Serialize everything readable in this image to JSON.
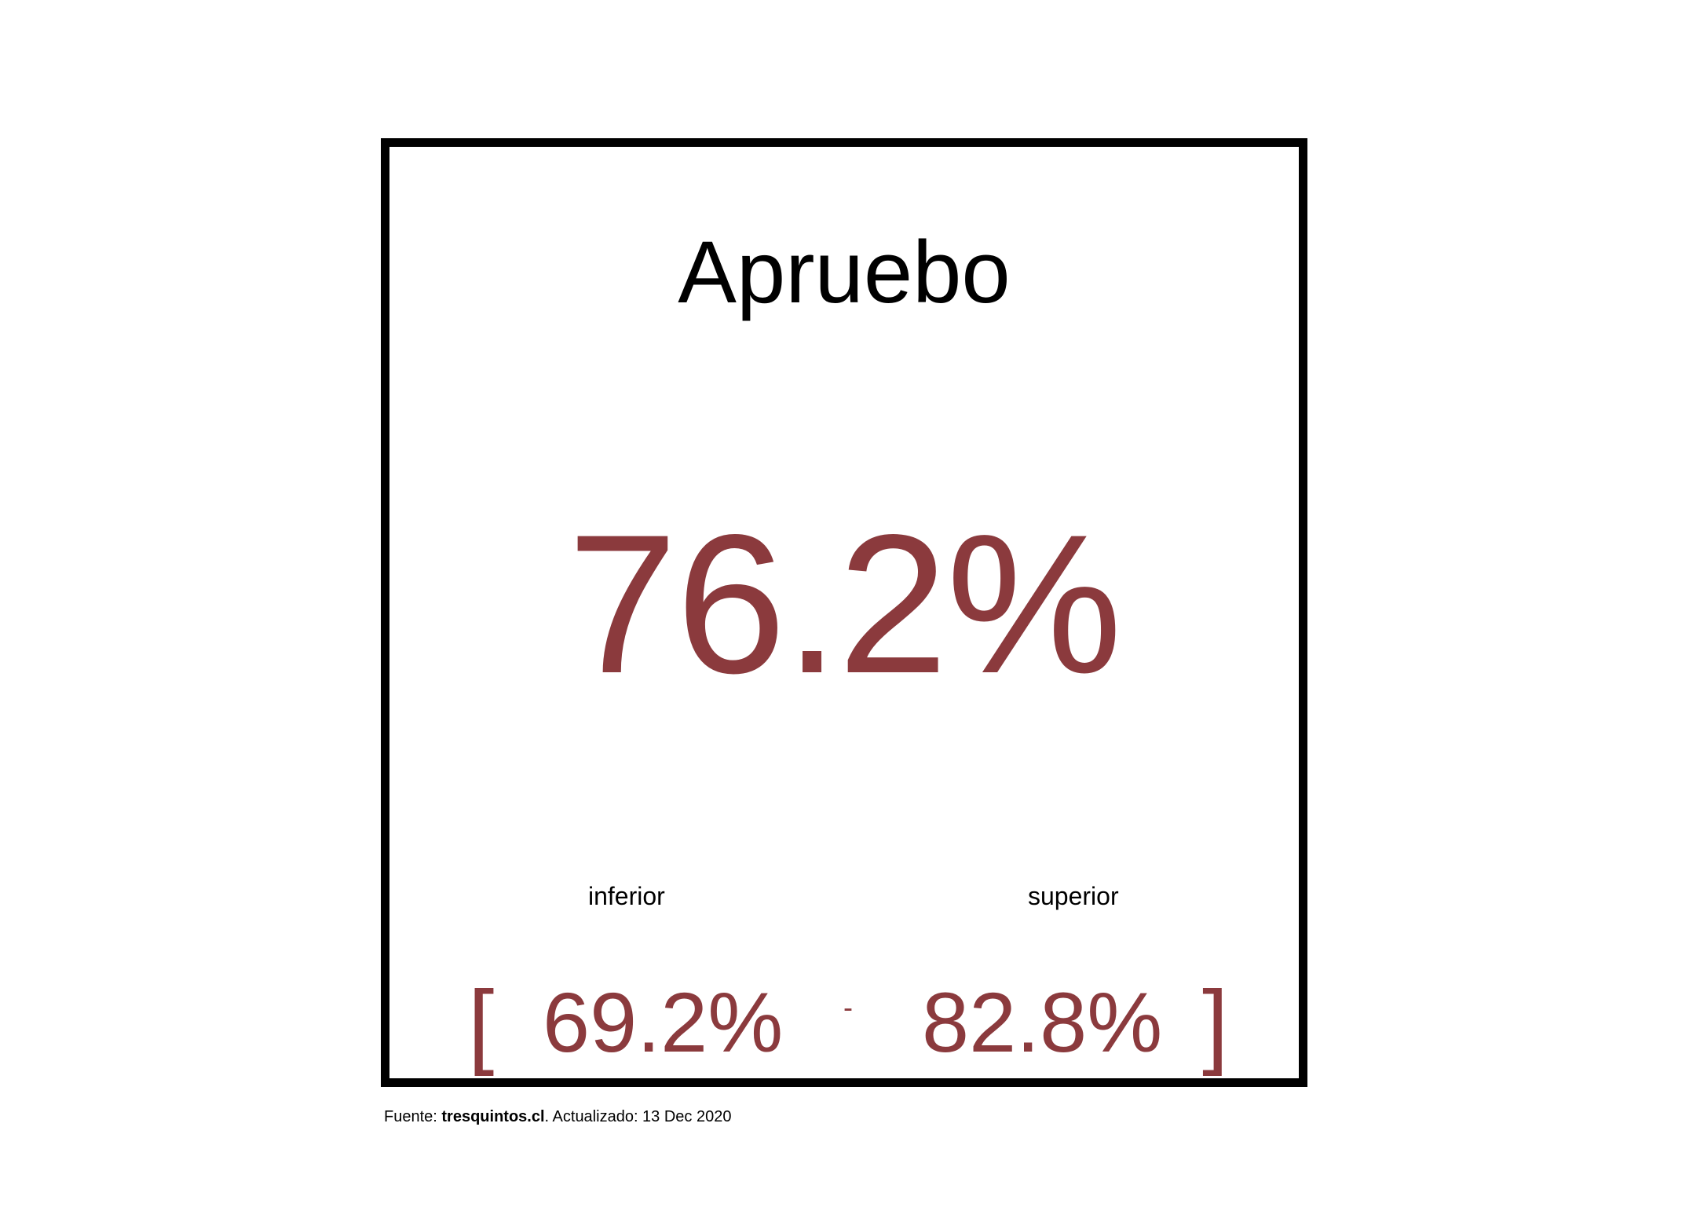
{
  "chart_data": {
    "type": "table",
    "title": "Apruebo",
    "estimate": "76.2%",
    "interval": {
      "lower_label": "inferior",
      "upper_label": "superior",
      "lower": "69.2%",
      "upper": "82.8%",
      "open_bracket": "[",
      "separator": "-",
      "close_bracket": "]"
    }
  },
  "footer": {
    "source_prefix": "Fuente: ",
    "source_name": "tresquintos.cl",
    "updated_text": ". Actualizado: 13 Dec 2020"
  },
  "colors": {
    "value": "#8b3a3d",
    "border": "#000000",
    "background": "#ffffff"
  }
}
